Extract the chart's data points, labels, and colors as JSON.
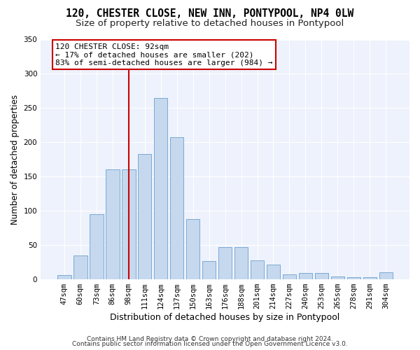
{
  "title1": "120, CHESTER CLOSE, NEW INN, PONTYPOOL, NP4 0LW",
  "title2": "Size of property relative to detached houses in Pontypool",
  "xlabel": "Distribution of detached houses by size in Pontypool",
  "ylabel": "Number of detached properties",
  "categories": [
    "47sqm",
    "60sqm",
    "73sqm",
    "86sqm",
    "98sqm",
    "111sqm",
    "124sqm",
    "137sqm",
    "150sqm",
    "163sqm",
    "176sqm",
    "188sqm",
    "201sqm",
    "214sqm",
    "227sqm",
    "240sqm",
    "253sqm",
    "265sqm",
    "278sqm",
    "291sqm",
    "304sqm"
  ],
  "values": [
    6,
    35,
    95,
    160,
    160,
    183,
    265,
    207,
    88,
    27,
    47,
    47,
    28,
    22,
    7,
    9,
    9,
    4,
    3,
    3,
    10
  ],
  "bar_color": "#c5d8ee",
  "bar_edge_color": "#7baad4",
  "vline_x": 4,
  "vline_color": "#cc0000",
  "annotation_text": "120 CHESTER CLOSE: 92sqm\n← 17% of detached houses are smaller (202)\n83% of semi-detached houses are larger (984) →",
  "annotation_box_color": "#ffffff",
  "annotation_box_edge": "#cc0000",
  "ylim": [
    0,
    350
  ],
  "yticks": [
    0,
    50,
    100,
    150,
    200,
    250,
    300,
    350
  ],
  "background_color": "#eef2fc",
  "grid_color": "#ffffff",
  "footer1": "Contains HM Land Registry data © Crown copyright and database right 2024.",
  "footer2": "Contains public sector information licensed under the Open Government Licence v3.0.",
  "title1_fontsize": 10.5,
  "title2_fontsize": 9.5,
  "xlabel_fontsize": 9,
  "ylabel_fontsize": 8.5,
  "tick_fontsize": 7.5,
  "annotation_fontsize": 8,
  "footer_fontsize": 6.5
}
